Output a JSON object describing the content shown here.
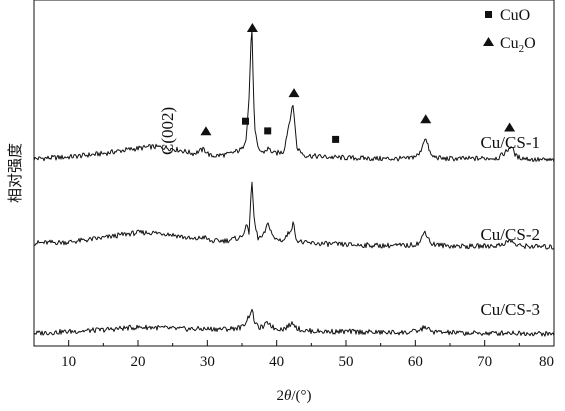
{
  "chart_data": {
    "type": "line",
    "xlabel": "2θ/(°)",
    "ylabel": "相对强度",
    "xlim": [
      5,
      80
    ],
    "xticks": [
      10,
      20,
      30,
      40,
      50,
      60,
      70,
      80
    ],
    "yticks_shown": false,
    "grid": false,
    "legend_position": "top-right",
    "legend": [
      {
        "marker": "square",
        "label": "CuO",
        "sub": ""
      },
      {
        "marker": "triangle",
        "label": "Cu",
        "sub": "2",
        "post": "O"
      }
    ],
    "annotations": [
      {
        "text": "C(002)",
        "x": 24
      }
    ],
    "series": [
      {
        "name": "Cu/CS-1",
        "offset": 200,
        "x": [
          5,
          10,
          15,
          18,
          20,
          22,
          24,
          26,
          28,
          29.5,
          30.5,
          33,
          35,
          35.6,
          36,
          36.4,
          36.8,
          37.3,
          38,
          38.8,
          39.6,
          41,
          42.0,
          42.4,
          42.9,
          44,
          47,
          50,
          55,
          59,
          60.6,
          61.4,
          62.3,
          64,
          68,
          72,
          73.2,
          73.8,
          74.6,
          77,
          80
        ],
        "values": [
          5,
          7,
          11,
          15,
          17,
          19,
          18,
          15,
          11,
          16,
          8,
          10,
          16,
          30,
          72,
          165,
          40,
          17,
          12,
          17,
          11,
          13,
          55,
          68,
          18,
          9,
          7,
          6,
          5,
          5,
          10,
          30,
          8,
          5,
          5,
          6,
          14,
          20,
          7,
          4,
          3
        ]
      },
      {
        "name": "Cu/CS-2",
        "offset": 100,
        "x": [
          5,
          10,
          15,
          18,
          20,
          22,
          24,
          26,
          28,
          29.5,
          30.5,
          33,
          35,
          35.6,
          36,
          36.4,
          36.8,
          37.3,
          38,
          38.8,
          39.6,
          41,
          42.0,
          42.4,
          42.9,
          44,
          47,
          50,
          55,
          59,
          60.6,
          61.4,
          62.3,
          64,
          68,
          72,
          73.2,
          73.8,
          74.6,
          77,
          80
        ],
        "values": [
          7,
          8,
          13,
          17,
          19,
          19,
          18,
          15,
          11,
          14,
          9,
          10,
          14,
          28,
          18,
          80,
          30,
          13,
          14,
          30,
          12,
          10,
          22,
          30,
          10,
          7,
          6,
          5,
          4,
          4,
          7,
          21,
          6,
          4,
          3,
          4,
          8,
          10,
          4,
          3,
          2
        ]
      },
      {
        "name": "Cu/CS-3",
        "offset": 0,
        "x": [
          5,
          10,
          15,
          18,
          20,
          22,
          24,
          26,
          28,
          30,
          33,
          35,
          35.6,
          36,
          36.4,
          36.8,
          37.3,
          38,
          38.8,
          39.6,
          41,
          42.0,
          42.4,
          42.9,
          44,
          47,
          50,
          55,
          59,
          60.6,
          61.4,
          62.3,
          64,
          68,
          72,
          73.5,
          75,
          77,
          80
        ],
        "values": [
          2,
          4,
          6,
          8,
          9,
          9,
          8,
          7,
          7,
          7,
          7,
          9,
          16,
          22,
          30,
          16,
          9,
          9,
          15,
          8,
          7,
          12,
          15,
          8,
          5,
          4,
          4,
          3,
          3,
          5,
          10,
          4,
          3,
          2,
          2,
          3,
          2,
          2,
          1
        ]
      }
    ],
    "series_labels": [
      "Cu/CS-1",
      "Cu/CS-2",
      "Cu/CS-3"
    ],
    "markers_cuo": [
      35.5,
      38.7,
      48.5
    ],
    "markers_cu2o": [
      29.8,
      36.5,
      42.5,
      61.5,
      73.6
    ]
  }
}
